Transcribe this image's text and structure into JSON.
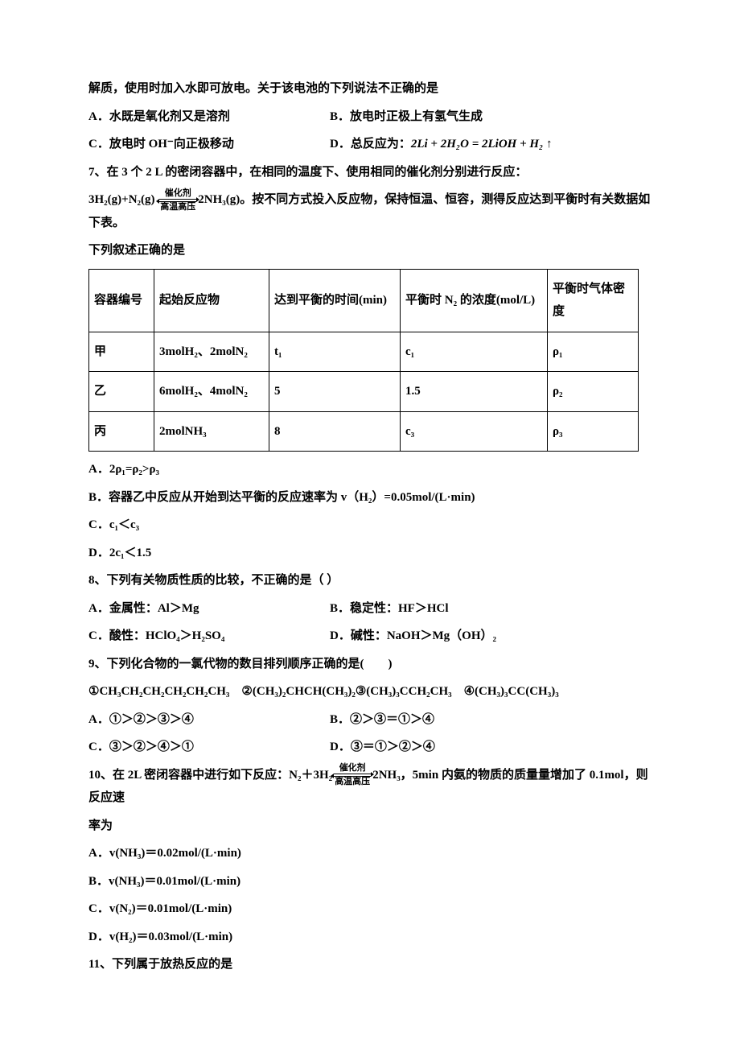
{
  "q6": {
    "intro": "解质，使用时加入水即可放电。关于该电池的下列说法不正确的是",
    "A": "A．水既是氧化剂又是溶剂",
    "B": "B．放电时正极上有氢气生成",
    "C": "C．放电时 OH⁻向正极移动",
    "D_prefix": "D．总反应为：",
    "D_eq": "2Li + 2H₂O = 2LiOH + H₂ ↑"
  },
  "q7": {
    "stem1": "7、在 3 个 2 L 的密闭容器中，在相同的温度下、使用相同的催化剂分别进行反应：",
    "stem2a": "3H₂(g)+N₂(g) ",
    "arrow_top": "催化剂",
    "arrow_bot": "高温高压",
    "stem2b": "2NH₃(g)。按不同方式投入反应物，保持恒温、恒容，测得反应达到平衡时有关数据如下表。",
    "stem3": "下列叙述正确的是",
    "table": {
      "headers": [
        "容器编号",
        "起始反应物",
        "达到平衡的时间(min)",
        "平衡时 N₂ 的浓度(mol/L)",
        "平衡时气体密度"
      ],
      "rows": [
        [
          "甲",
          "3molH₂、2molN₂",
          "t₁",
          "c₁",
          "ρ₁"
        ],
        [
          "乙",
          "6molH₂、4molN₂",
          "5",
          "1.5",
          "ρ₂"
        ],
        [
          "丙",
          "2molNH₃",
          "8",
          "c₃",
          "ρ₃"
        ]
      ]
    },
    "A": "A．2ρ₁=ρ₂>ρ₃",
    "B": "B．容器乙中反应从开始到达平衡的反应速率为 v（H₂）=0.05mol/(L·min)",
    "C": "C．c₁＜c₃",
    "D": "D．2c₁＜1.5"
  },
  "q8": {
    "stem": "8、下列有关物质性质的比较，不正确的是（ ）",
    "A": "A．金属性：Al＞Mg",
    "B": "B．稳定性：HF＞HCl",
    "C": "C．酸性：HClO₄＞H₂SO₄",
    "D": "D．碱性：NaOH＞Mg（OH）₂"
  },
  "q9": {
    "stem": "9、下列化合物的一氯代物的数目排列顺序正确的是(　　)",
    "compounds": "①CH₃CH₂CH₂CH₂CH₂CH₃　②(CH₃)₂CHCH(CH₃)₂③(CH₃)₃CCH₂CH₃　④(CH₃)₃CC(CH₃)₃",
    "A": "A．①＞②＞③＞④",
    "B": "B．②＞③＝①＞④",
    "C": "C．③＞②＞④＞①",
    "D": "D．③＝①＞②＞④"
  },
  "q10": {
    "stem1a": "10、在 2L 密闭容器中进行如下反应：N₂＋3H₂",
    "arrow_top": "催化剂",
    "arrow_bot": "高温高压",
    "stem1b": "2NH₃，5min 内氨的物质的质量量增加了 0.1mol，则反应速",
    "stem2": "率为",
    "A": "A．v(NH₃)＝0.02mol/(L·min)",
    "B": "B．v(NH₃)＝0.01mol/(L·min)",
    "C": "C．v(N₂)＝0.01mol/(L·min)",
    "D": "D．v(H₂)＝0.03mol/(L·min)"
  },
  "q11": {
    "stem": "11、下列属于放热反应的是"
  }
}
